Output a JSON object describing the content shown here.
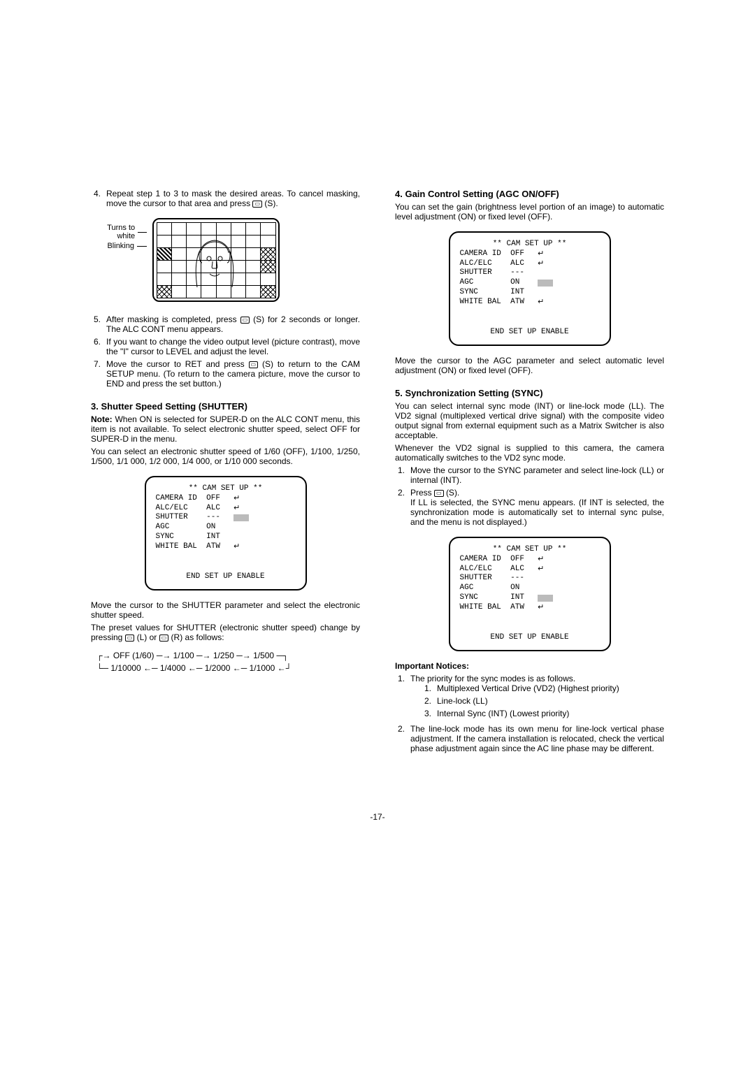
{
  "page_number": "-17-",
  "left": {
    "step4": {
      "num": "4.",
      "text": "Repeat step 1 to 3 to mask the desired areas. To cancel masking, move the cursor to that area and press",
      "suffix": "(S)."
    },
    "mask_labels": {
      "turns": "Turns to white",
      "blinking": "Blinking"
    },
    "step5": {
      "num": "5.",
      "text_a": "After masking is completed, press",
      "text_b": "(S) for 2 seconds or longer. The ALC CONT menu appears."
    },
    "step6": {
      "num": "6.",
      "text": "If you want to change the video output level (picture contrast), move the \"I\" cursor to LEVEL and adjust the level."
    },
    "step7": {
      "num": "7.",
      "text_a": "Move the cursor to RET and press",
      "text_b": "(S) to return to the CAM SETUP menu. (To return to the camera picture, move the cursor to END and press the set button.)"
    },
    "h_shutter": "3. Shutter Speed Setting (SHUTTER)",
    "note_label": "Note:",
    "note_body": "When ON is selected for SUPER-D on the ALC CONT menu, this item is not available. To select electronic shutter speed, select OFF for SUPER-D in the menu.",
    "shutter_para": "You can select an electronic shutter speed of 1/60 (OFF), 1/100, 1/250, 1/500, 1/1 000, 1/2 000, 1/4 000, or 1/10 000 seconds.",
    "osd1": {
      "title": "** CAM SET UP **",
      "rows": [
        [
          "CAMERA ID",
          "OFF",
          true
        ],
        [
          "ALC/ELC",
          "ALC",
          true
        ],
        [
          "SHUTTER",
          "---",
          false
        ],
        [
          "AGC",
          "ON",
          false
        ],
        [
          "SYNC",
          "INT",
          false
        ],
        [
          "WHITE BAL",
          "ATW",
          true
        ]
      ],
      "cursor_row": 2,
      "end": "END   SET UP ENABLE"
    },
    "after_osd_1": "Move the cursor to the SHUTTER parameter and select the electronic shutter speed.",
    "after_osd_2a": "The preset values for SHUTTER (electronic shutter speed) change by pressing",
    "after_osd_2b": "(L) or",
    "after_osd_2c": "(R) as follows:",
    "flow": {
      "line1": [
        "OFF (1/60)",
        "1/100",
        "1/250",
        "1/500"
      ],
      "line2": [
        "1/10000",
        "1/4000",
        "1/2000",
        "1/1000"
      ]
    }
  },
  "right": {
    "h_agc": "4. Gain Control Setting (AGC ON/OFF)",
    "agc_para": "You can set the gain (brightness level portion of an image) to automatic level adjustment (ON) or fixed level (OFF).",
    "osd2": {
      "title": "** CAM SET UP **",
      "rows": [
        [
          "CAMERA ID",
          "OFF",
          true
        ],
        [
          "ALC/ELC",
          "ALC",
          true
        ],
        [
          "SHUTTER",
          "---",
          false
        ],
        [
          "AGC",
          "ON",
          false
        ],
        [
          "SYNC",
          "INT",
          false
        ],
        [
          "WHITE BAL",
          "ATW",
          true
        ]
      ],
      "cursor_row": 3,
      "end": "END   SET UP ENABLE"
    },
    "agc_after": "Move the cursor to the AGC parameter and select automatic level adjustment (ON) or fixed level (OFF).",
    "h_sync": "5. Synchronization Setting (SYNC)",
    "sync_para": "You can select internal sync mode (INT) or line-lock mode (LL). The VD2 signal (multiplexed vertical drive signal) with the composite video output signal from external equipment such as a Matrix Switcher is also acceptable.",
    "sync_para2": "Whenever the VD2 signal is supplied to this camera, the camera automatically switches to the VD2 sync mode.",
    "sync_step1": {
      "num": "1.",
      "text": "Move the cursor to the SYNC parameter and select line-lock (LL) or internal (INT)."
    },
    "sync_step2": {
      "num": "2.",
      "text_a": "Press",
      "text_b": "(S).",
      "text_c": "If LL is selected, the SYNC menu appears. (If INT is selected, the synchronization mode is automatically set to internal sync pulse, and the menu is not displayed.)"
    },
    "osd3": {
      "title": "** CAM SET UP **",
      "rows": [
        [
          "CAMERA ID",
          "OFF",
          true
        ],
        [
          "ALC/ELC",
          "ALC",
          true
        ],
        [
          "SHUTTER",
          "---",
          false
        ],
        [
          "AGC",
          "ON",
          false
        ],
        [
          "SYNC",
          "INT",
          false
        ],
        [
          "WHITE BAL",
          "ATW",
          true
        ]
      ],
      "cursor_row": 4,
      "end": "END   SET UP ENABLE"
    },
    "important_label": "Important Notices:",
    "imp1": {
      "num": "1.",
      "text": "The priority for the sync modes is as follows.",
      "sub": [
        {
          "num": "1.",
          "text": "Multiplexed Vertical Drive (VD2) (Highest priority)"
        },
        {
          "num": "2.",
          "text": "Line-lock (LL)"
        },
        {
          "num": "3.",
          "text": "Internal Sync (INT) (Lowest priority)"
        }
      ]
    },
    "imp2": {
      "num": "2.",
      "text": "The line-lock mode has its own menu for line-lock vertical phase adjustment. If the camera installation is relocated, check the vertical phase adjustment again since the AC line phase may be different."
    }
  }
}
